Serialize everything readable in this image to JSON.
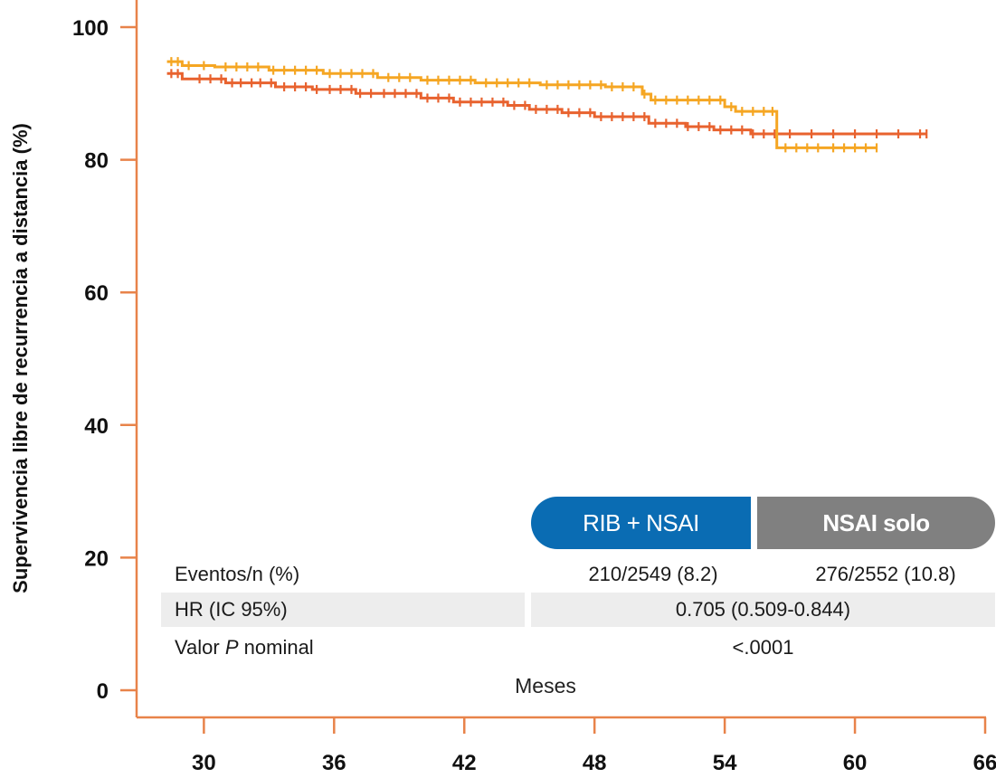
{
  "chart_data": {
    "type": "line",
    "title": "",
    "ylabel": "Supervivencia libre de recurrencia a distancia (%)",
    "xlabel": "Meses",
    "xlim": [
      26.9,
      66.5
    ],
    "ylim": [
      0,
      100
    ],
    "x_ticks": [
      30,
      36,
      42,
      48,
      54,
      60,
      66
    ],
    "y_ticks": [
      0,
      20,
      40,
      60,
      80,
      100
    ],
    "colors": {
      "axis": "#e8834a",
      "rib_nsai": "#e8622e",
      "nsai_solo": "#f5a623"
    },
    "series": [
      {
        "name": "RIB + NSAI",
        "color": "#e8622e",
        "points": [
          [
            28.3,
            93
          ],
          [
            29.0,
            93
          ],
          [
            29.0,
            92.2
          ],
          [
            31.0,
            92.2
          ],
          [
            31.0,
            91.6
          ],
          [
            33.3,
            91.6
          ],
          [
            33.3,
            91
          ],
          [
            35.0,
            91
          ],
          [
            35.0,
            90.6
          ],
          [
            37.0,
            90.6
          ],
          [
            37.0,
            90
          ],
          [
            40.0,
            90
          ],
          [
            40.0,
            89.3
          ],
          [
            41.5,
            89.3
          ],
          [
            41.5,
            88.7
          ],
          [
            44.0,
            88.7
          ],
          [
            44.0,
            88.2
          ],
          [
            45.0,
            88.2
          ],
          [
            45.0,
            87.6
          ],
          [
            46.5,
            87.6
          ],
          [
            46.5,
            87.1
          ],
          [
            48.0,
            87.1
          ],
          [
            48.0,
            86.5
          ],
          [
            50.5,
            86.5
          ],
          [
            50.5,
            85.5
          ],
          [
            52.2,
            85.5
          ],
          [
            52.2,
            85
          ],
          [
            53.5,
            85
          ],
          [
            53.5,
            84.5
          ],
          [
            55.2,
            84.5
          ],
          [
            55.2,
            83.9
          ],
          [
            63.3,
            83.9
          ]
        ],
        "censor_marks": [
          28.5,
          28.8,
          29.8,
          30.3,
          30.8,
          31.3,
          31.7,
          32.2,
          32.6,
          33.1,
          33.7,
          34.2,
          34.7,
          35.2,
          35.8,
          36.3,
          36.8,
          37.2,
          37.7,
          38.3,
          38.8,
          39.3,
          39.8,
          40.3,
          40.8,
          41.3,
          41.8,
          42.3,
          42.8,
          43.3,
          43.8,
          44.3,
          44.8,
          45.3,
          45.8,
          46.3,
          46.8,
          47.3,
          47.8,
          48.3,
          48.8,
          49.3,
          49.8,
          50.3,
          50.8,
          51.3,
          51.8,
          52.3,
          52.8,
          53.3,
          53.8,
          54.3,
          54.8,
          55.3,
          55.8,
          56.3,
          57.0,
          58.0,
          59.0,
          60.0,
          61.0,
          62.0,
          63.0,
          63.3
        ]
      },
      {
        "name": "NSAI solo",
        "color": "#f5a623",
        "points": [
          [
            28.3,
            94.8
          ],
          [
            29.0,
            94.8
          ],
          [
            29.0,
            94.2
          ],
          [
            30.5,
            94.2
          ],
          [
            30.5,
            94
          ],
          [
            33.0,
            94
          ],
          [
            33.0,
            93.5
          ],
          [
            35.5,
            93.5
          ],
          [
            35.5,
            93
          ],
          [
            38.0,
            93
          ],
          [
            38.0,
            92.4
          ],
          [
            40.0,
            92.4
          ],
          [
            40.0,
            92
          ],
          [
            42.5,
            92
          ],
          [
            42.5,
            91.6
          ],
          [
            45.5,
            91.6
          ],
          [
            45.5,
            91.3
          ],
          [
            48.5,
            91.3
          ],
          [
            48.5,
            91
          ],
          [
            50.2,
            91
          ],
          [
            50.2,
            89.9
          ],
          [
            50.6,
            89.9
          ],
          [
            50.6,
            89
          ],
          [
            54.0,
            89
          ],
          [
            54.0,
            88
          ],
          [
            54.5,
            88
          ],
          [
            54.5,
            87.3
          ],
          [
            56.4,
            87.3
          ],
          [
            56.4,
            81.8
          ],
          [
            61.0,
            81.8
          ]
        ],
        "censor_marks": [
          28.5,
          28.8,
          29.3,
          30.0,
          31.0,
          31.5,
          32.0,
          32.5,
          33.2,
          33.7,
          34.2,
          34.7,
          35.2,
          35.8,
          36.3,
          36.8,
          37.3,
          37.8,
          38.5,
          39.0,
          39.5,
          40.3,
          40.8,
          41.3,
          41.8,
          42.3,
          43.0,
          43.5,
          44.0,
          44.5,
          45.0,
          45.8,
          46.3,
          46.8,
          47.3,
          47.8,
          48.3,
          48.8,
          49.3,
          49.8,
          50.3,
          50.8,
          51.3,
          51.8,
          52.3,
          52.8,
          53.3,
          53.8,
          54.3,
          54.8,
          55.3,
          55.8,
          56.2,
          56.8,
          57.3,
          57.8,
          58.3,
          59.0,
          59.5,
          60.0,
          60.5,
          61.0
        ]
      }
    ]
  },
  "legend": {
    "rib_label": "RIB + NSAI",
    "nsai_label": "NSAI solo"
  },
  "table": {
    "row1": {
      "label": "Eventos/n (%)",
      "rib": "210/2549 (8.2)",
      "nsai": "276/2552 (10.8)"
    },
    "row2": {
      "label": "HR (IC 95%)",
      "value": "0.705 (0.509-0.844)"
    },
    "row3": {
      "label_prefix": "Valor ",
      "label_italic": "P",
      "label_suffix": " nominal",
      "value": "<.0001"
    }
  }
}
